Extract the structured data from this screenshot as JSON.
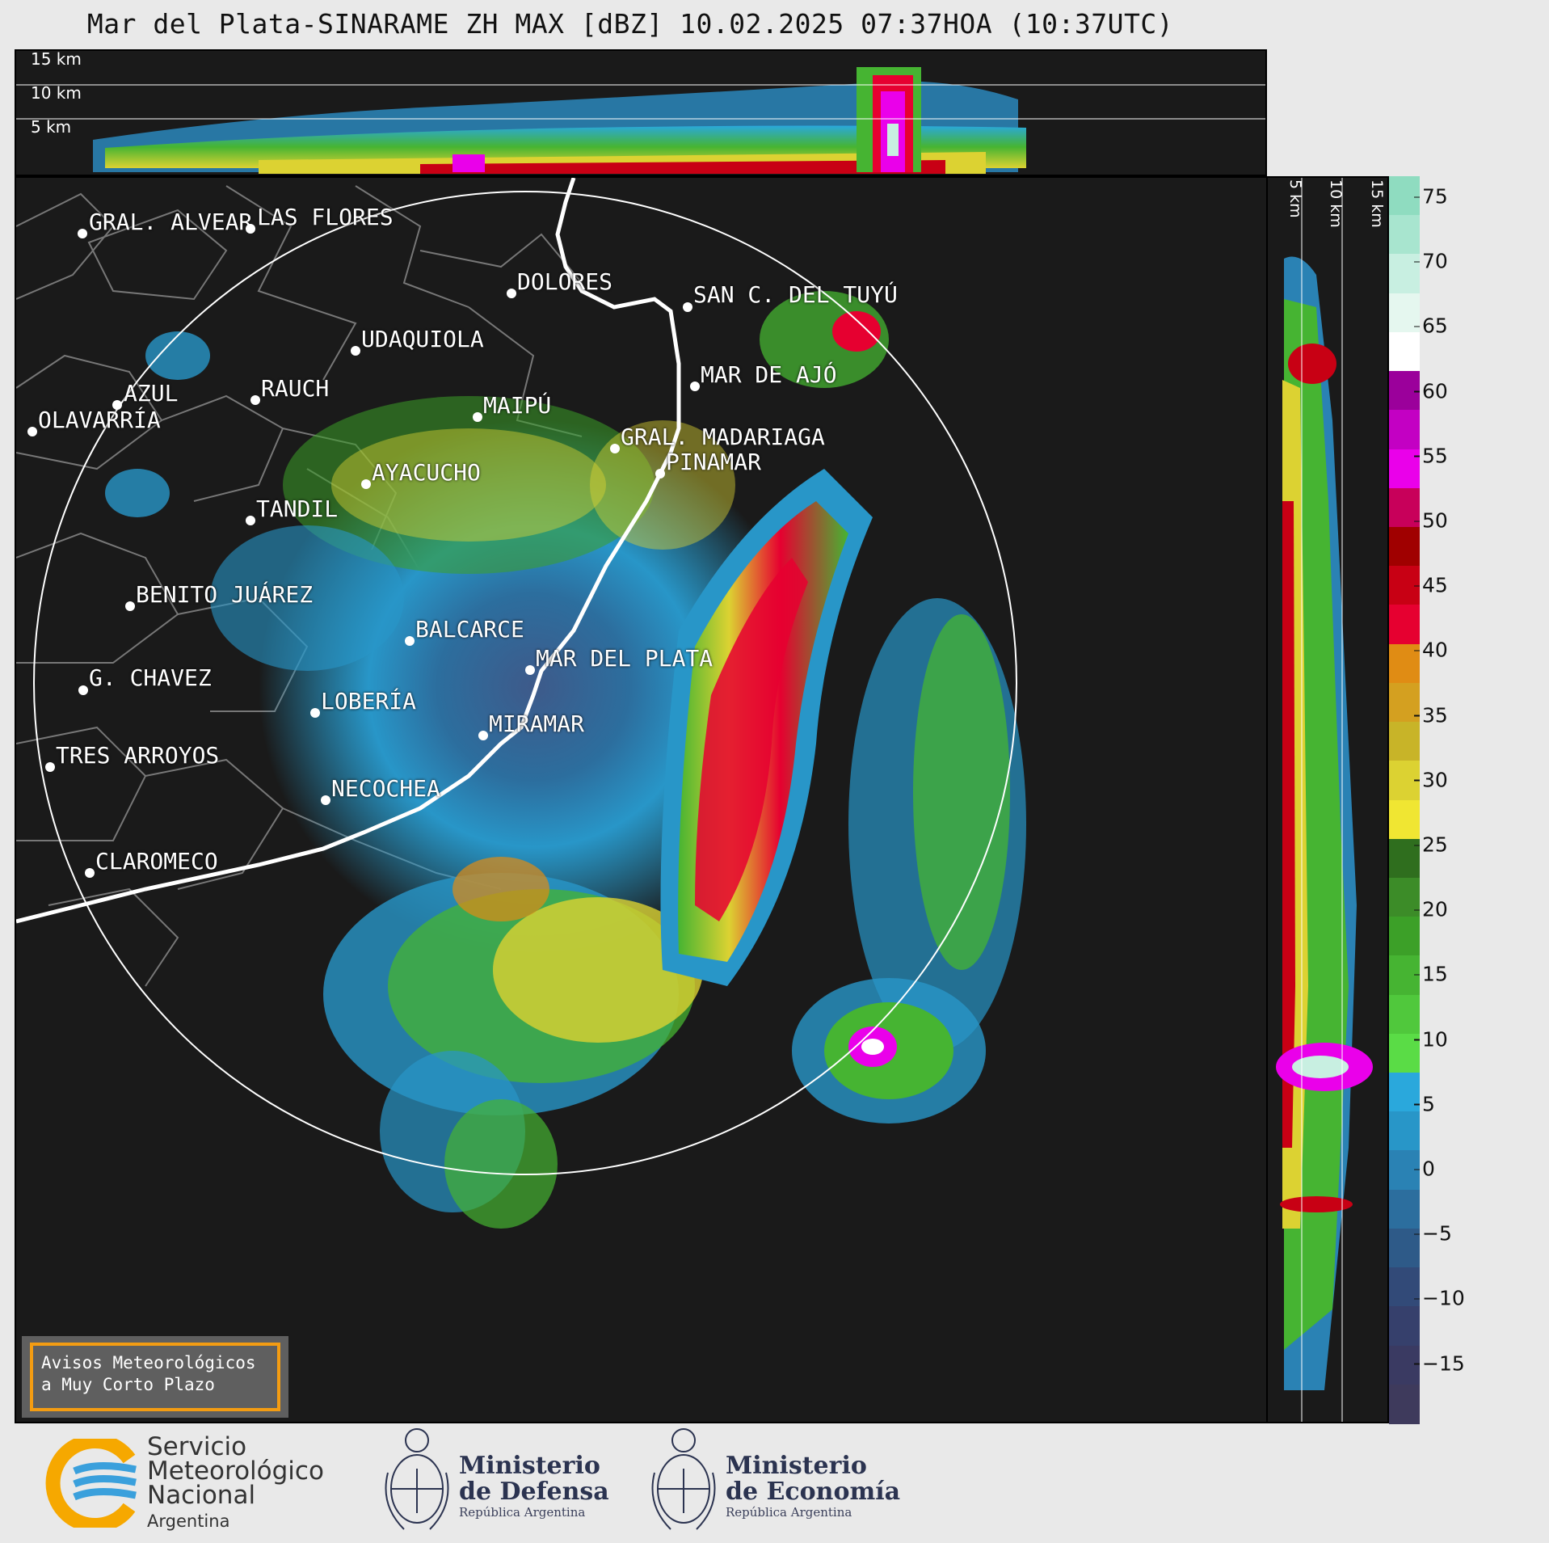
{
  "title": "Mar del Plata-SINARAME ZH MAX [dBZ] 10.02.2025 07:37HOA (10:37UTC)",
  "top_panel": {
    "height_labels": [
      "15 km",
      "10 km",
      "5 km"
    ]
  },
  "side_panel": {
    "height_labels": [
      "5 km",
      "10 km",
      "15 km"
    ]
  },
  "colorbar": {
    "unit": "dBZ",
    "ticks": [
      "75",
      "70",
      "65",
      "60",
      "55",
      "50",
      "45",
      "40",
      "35",
      "30",
      "25",
      "20",
      "15",
      "10",
      "5",
      "0",
      "−5",
      "−10",
      "−15"
    ],
    "colors_top_to_bottom": [
      "#8fdcc0",
      "#a8e5cf",
      "#c8efe1",
      "#e5f7ef",
      "#ffffff",
      "#9b009b",
      "#c300c3",
      "#ea00ea",
      "#c8005a",
      "#a00000",
      "#c80014",
      "#e60030",
      "#e08c14",
      "#d4a020",
      "#c8b428",
      "#dcd232",
      "#f0e632",
      "#2f6e1e",
      "#3c8c28",
      "#3ca028",
      "#46b432",
      "#50c83c",
      "#5adc46",
      "#2aa8dc",
      "#2896c8",
      "#2a82b4",
      "#2c6e9e",
      "#2e5a88",
      "#324a78",
      "#36406c",
      "#3a3a62",
      "#3e3a5c"
    ]
  },
  "cities": [
    {
      "name": "GRAL. ALVEAR"
    },
    {
      "name": "LAS FLORES"
    },
    {
      "name": "DOLORES"
    },
    {
      "name": "SAN C. DEL TUYÚ"
    },
    {
      "name": "UDAQUIOLA"
    },
    {
      "name": "AZUL"
    },
    {
      "name": "RAUCH"
    },
    {
      "name": "OLAVARRÍA"
    },
    {
      "name": "MAR DE AJÓ"
    },
    {
      "name": "MAIPÚ"
    },
    {
      "name": "GRAL. MADARIAGA"
    },
    {
      "name": "PINAMAR"
    },
    {
      "name": "AYACUCHO"
    },
    {
      "name": "TANDIL"
    },
    {
      "name": "BENITO JUÁREZ"
    },
    {
      "name": "BALCARCE"
    },
    {
      "name": "MAR DEL PLATA"
    },
    {
      "name": "G. CHAVEZ"
    },
    {
      "name": "LOBERÍA"
    },
    {
      "name": "MIRAMAR"
    },
    {
      "name": "TRES ARROYOS"
    },
    {
      "name": "NECOCHEA"
    },
    {
      "name": "CLAROMECO"
    }
  ],
  "avisos": {
    "line1": "Avisos Meteorológicos",
    "line2": "a Muy Corto Plazo"
  },
  "footer": {
    "smn": {
      "line1": "Servicio",
      "line2": "Meteorológico",
      "line3": "Nacional",
      "country": "Argentina"
    },
    "defensa": {
      "line1": "Ministerio",
      "line2": "de Defensa",
      "sub": "República Argentina"
    },
    "economia": {
      "line1": "Ministerio",
      "line2": "de Economía",
      "sub": "República Argentina"
    }
  }
}
